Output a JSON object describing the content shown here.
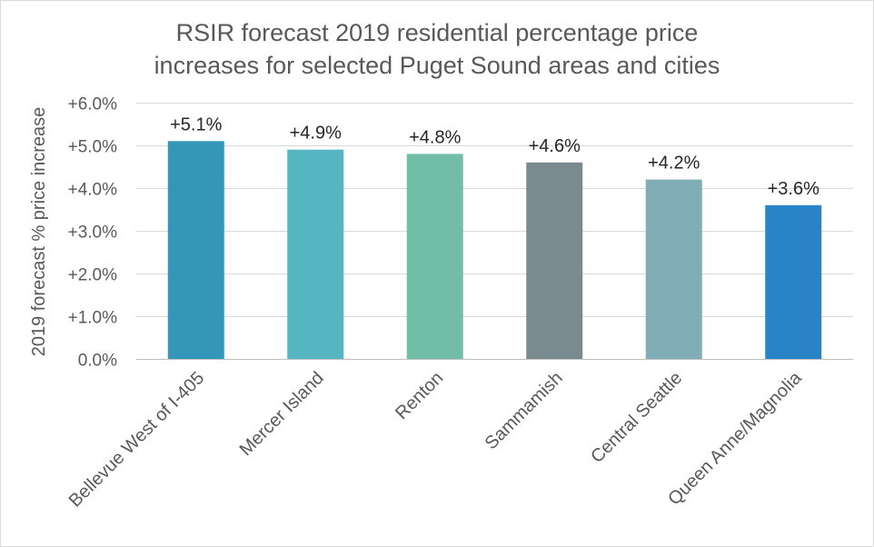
{
  "chart_data": {
    "type": "bar",
    "title": "RSIR forecast 2019 residential percentage price increases for selected Puget Sound areas and cities",
    "title_lines": [
      "RSIR forecast 2019 residential percentage price",
      "increases for selected Puget Sound areas and cities"
    ],
    "xlabel": "",
    "ylabel": "2019 forecast % price increase",
    "ylim": [
      0,
      6
    ],
    "yticks": [
      0,
      1,
      2,
      3,
      4,
      5,
      6
    ],
    "ytick_labels": [
      "0.0%",
      "+1.0%",
      "+2.0%",
      "+3.0%",
      "+4.0%",
      "+5.0%",
      "+6.0%"
    ],
    "grid": true,
    "legend": "none",
    "categories": [
      "Bellevue West of I-405",
      "Mercer Island",
      "Renton",
      "Sammamish",
      "Central Seattle",
      "Queen Anne/Magnolia"
    ],
    "values": [
      5.1,
      4.9,
      4.8,
      4.6,
      4.2,
      3.6
    ],
    "data_labels": [
      "+5.1%",
      "+4.9%",
      "+4.8%",
      "+4.6%",
      "+4.2%",
      "+3.6%"
    ],
    "colors": [
      "#3497BA",
      "#55B6C1",
      "#72BDA6",
      "#798B8E",
      "#7FACB5",
      "#2A83C6"
    ]
  }
}
